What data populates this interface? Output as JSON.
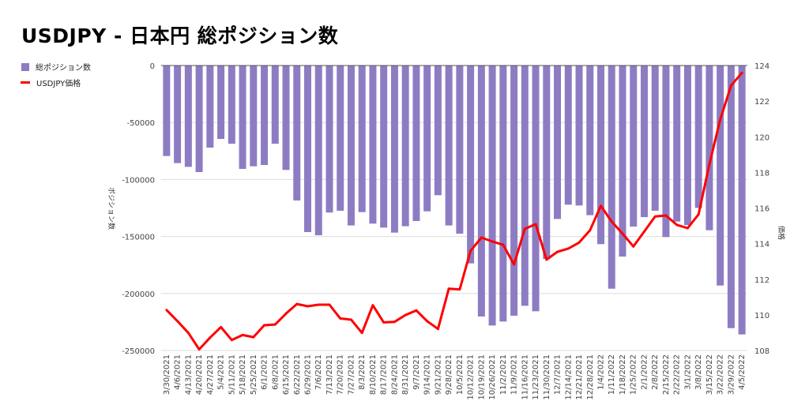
{
  "chart_data": {
    "type": "bar+line",
    "title": "USDJPY - 日本円 総ポジション数",
    "legend_position": "top-left",
    "grid": true,
    "ylabel_left": "ポジション数",
    "ylabel_right": "価格",
    "ylim_left": [
      -250000,
      0
    ],
    "yticks_left": [
      "0",
      "-50000",
      "-100000",
      "-150000",
      "-200000",
      "-250000"
    ],
    "ylim_right": [
      108,
      124
    ],
    "yticks_right": [
      "108",
      "110",
      "112",
      "114",
      "116",
      "118",
      "120",
      "122",
      "124"
    ],
    "categories": [
      "3/30/2021",
      "4/6/2021",
      "4/13/2021",
      "4/20/2021",
      "4/27/2021",
      "5/4/2021",
      "5/11/2021",
      "5/18/2021",
      "5/25/2021",
      "6/1/2021",
      "6/8/2021",
      "6/15/2021",
      "6/22/2021",
      "6/29/2021",
      "7/6/2021",
      "7/13/2021",
      "7/20/2021",
      "7/27/2021",
      "8/3/2021",
      "8/10/2021",
      "8/17/2021",
      "8/24/2021",
      "8/31/2021",
      "9/7/2021",
      "9/14/2021",
      "9/21/2021",
      "9/28/2021",
      "10/5/2021",
      "10/12/2021",
      "10/19/2021",
      "10/26/2021",
      "11/2/2021",
      "11/9/2021",
      "11/16/2021",
      "11/23/2021",
      "11/30/2021",
      "12/7/2021",
      "12/14/2021",
      "12/21/2021",
      "12/28/2021",
      "1/4/2022",
      "1/11/2022",
      "1/18/2022",
      "1/25/2022",
      "2/1/2022",
      "2/8/2022",
      "2/15/2022",
      "2/22/2022",
      "3/1/2022",
      "3/8/2022",
      "3/15/2022",
      "3/22/2022",
      "3/29/2022",
      "4/5/2022"
    ],
    "series": [
      {
        "name": "総ポジション数",
        "type": "bar",
        "axis": "left",
        "color": "#8e7cc3",
        "values": [
          -79400,
          -85600,
          -88900,
          -93500,
          -72000,
          -64400,
          -68600,
          -90700,
          -88400,
          -87300,
          -68600,
          -91600,
          -118400,
          -146100,
          -148900,
          -129000,
          -127400,
          -140300,
          -128600,
          -138700,
          -142200,
          -146600,
          -141000,
          -136400,
          -127900,
          -113800,
          -140300,
          -147500,
          -173600,
          -220200,
          -228100,
          -224600,
          -219500,
          -210800,
          -215600,
          -169700,
          -134600,
          -122100,
          -122800,
          -131300,
          -156700,
          -195800,
          -167600,
          -141300,
          -133000,
          -127400,
          -150500,
          -136900,
          -140000,
          -124900,
          -144500,
          -193000,
          -230400,
          -235900
        ]
      },
      {
        "name": "USDJPY価格",
        "type": "line",
        "axis": "right",
        "color": "#ff0000",
        "values": [
          110.27,
          109.65,
          108.99,
          108.06,
          108.72,
          109.31,
          108.59,
          108.87,
          108.75,
          109.42,
          109.46,
          110.07,
          110.61,
          110.48,
          110.57,
          110.57,
          109.8,
          109.73,
          108.99,
          110.54,
          109.58,
          109.61,
          109.99,
          110.25,
          109.65,
          109.21,
          111.47,
          111.43,
          113.6,
          114.34,
          114.12,
          113.94,
          112.83,
          114.83,
          115.09,
          113.1,
          113.54,
          113.72,
          114.06,
          114.75,
          116.12,
          115.24,
          114.56,
          113.84,
          114.68,
          115.52,
          115.58,
          115.05,
          114.87,
          115.64,
          118.45,
          120.96,
          122.88,
          123.59
        ]
      }
    ]
  }
}
